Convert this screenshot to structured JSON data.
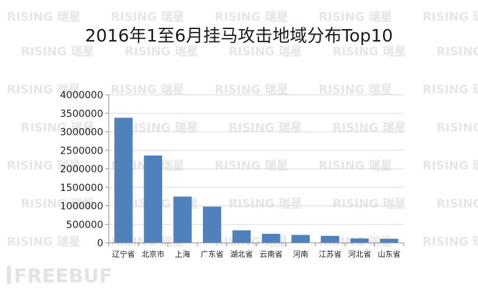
{
  "watermark": {
    "text": "RISING 瑞星",
    "color": "#e6e6e6"
  },
  "logo": {
    "text": "FREEBUF",
    "color": "#e3e3e3"
  },
  "chart_data": {
    "type": "bar",
    "title": "2016年1至6月挂马攻击地域分布Top10",
    "xlabel": "",
    "ylabel": "",
    "categories": [
      "辽宁省",
      "北京市",
      "上海",
      "广东省",
      "湖北省",
      "云南省",
      "河南",
      "江苏省",
      "河北省",
      "山东省"
    ],
    "values": [
      3380000,
      2360000,
      1250000,
      980000,
      340000,
      245000,
      215000,
      190000,
      120000,
      110000
    ],
    "ylim": [
      0,
      4000000
    ],
    "yticks": [
      "0",
      "500000",
      "1000000",
      "1500000",
      "2000000",
      "2500000",
      "3000000",
      "3500000",
      "4000000"
    ],
    "grid": true,
    "legend": "none",
    "bar_color": "#4f81bd",
    "grid_color": "#d9d9d9",
    "axis_color": "#8c8c8c",
    "text_color": "#1a1a1a"
  }
}
